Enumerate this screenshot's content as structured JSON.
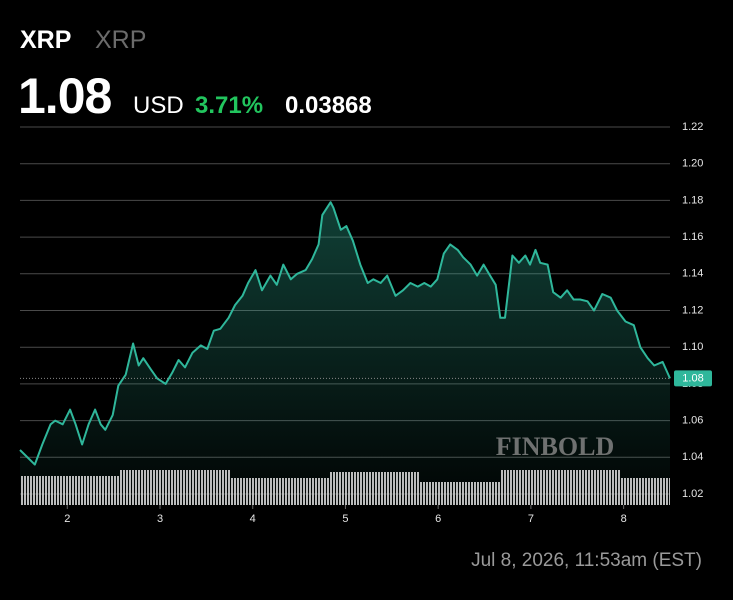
{
  "header": {
    "symbol": "XRP",
    "name": "XRP",
    "price": "1.08",
    "currency": "USD",
    "change_pct": "3.71%",
    "change": "0.03868"
  },
  "timestamp": "Jul 8, 2026, 11:53am (EST)",
  "watermark": "FINBOLD",
  "chart_data": {
    "type": "line",
    "color": "#2fb79b",
    "grid": true,
    "x": [
      1.49,
      1.65,
      1.73,
      1.82,
      1.87,
      1.95,
      2.03,
      2.09,
      2.16,
      2.23,
      2.3,
      2.36,
      2.41,
      2.49,
      2.55,
      2.63,
      2.71,
      2.77,
      2.82,
      2.9,
      2.97,
      3.06,
      3.13,
      3.2,
      3.27,
      3.35,
      3.44,
      3.51,
      3.58,
      3.65,
      3.74,
      3.81,
      3.89,
      3.95,
      4.03,
      4.1,
      4.19,
      4.26,
      4.33,
      4.41,
      4.48,
      4.57,
      4.64,
      4.71,
      4.75,
      4.84,
      4.87,
      4.95,
      5.01,
      5.08,
      5.16,
      5.24,
      5.3,
      5.38,
      5.45,
      5.54,
      5.62,
      5.7,
      5.78,
      5.85,
      5.92,
      5.99,
      6.06,
      6.13,
      6.21,
      6.27,
      6.35,
      6.42,
      6.49,
      6.56,
      6.62,
      6.67,
      6.72,
      6.8,
      6.87,
      6.94,
      6.99,
      7.05,
      7.1,
      7.18,
      7.24,
      7.32,
      7.39,
      7.46,
      7.53,
      7.61,
      7.68,
      7.77,
      7.86,
      7.93,
      8.02,
      8.11,
      8.18,
      8.26,
      8.33,
      8.42,
      8.5
    ],
    "values": [
      1.044,
      1.036,
      1.047,
      1.058,
      1.06,
      1.058,
      1.066,
      1.058,
      1.047,
      1.058,
      1.066,
      1.058,
      1.055,
      1.063,
      1.079,
      1.085,
      1.102,
      1.09,
      1.094,
      1.088,
      1.083,
      1.08,
      1.086,
      1.093,
      1.089,
      1.097,
      1.101,
      1.099,
      1.109,
      1.11,
      1.116,
      1.123,
      1.128,
      1.135,
      1.142,
      1.131,
      1.139,
      1.134,
      1.145,
      1.137,
      1.14,
      1.142,
      1.148,
      1.156,
      1.172,
      1.179,
      1.176,
      1.164,
      1.166,
      1.158,
      1.145,
      1.135,
      1.137,
      1.135,
      1.139,
      1.128,
      1.131,
      1.135,
      1.133,
      1.135,
      1.133,
      1.137,
      1.151,
      1.156,
      1.153,
      1.149,
      1.145,
      1.139,
      1.145,
      1.139,
      1.134,
      1.116,
      1.116,
      1.15,
      1.146,
      1.15,
      1.145,
      1.153,
      1.146,
      1.145,
      1.13,
      1.127,
      1.131,
      1.126,
      1.126,
      1.125,
      1.12,
      1.129,
      1.127,
      1.12,
      1.114,
      1.112,
      1.1,
      1.094,
      1.09,
      1.092,
      1.083
    ],
    "xlim": [
      1.49,
      8.5
    ],
    "ylim": [
      1.02,
      1.22
    ],
    "xticks": [
      2,
      3,
      4,
      5,
      6,
      7,
      8
    ],
    "yticks": [
      1.02,
      1.04,
      1.06,
      1.08,
      {
        "value": 1.1,
        "label": "1.10"
      },
      1.12,
      1.14,
      1.16,
      1.18,
      {
        "value": 1.2,
        "label": "1.20"
      },
      1.22
    ]
  }
}
